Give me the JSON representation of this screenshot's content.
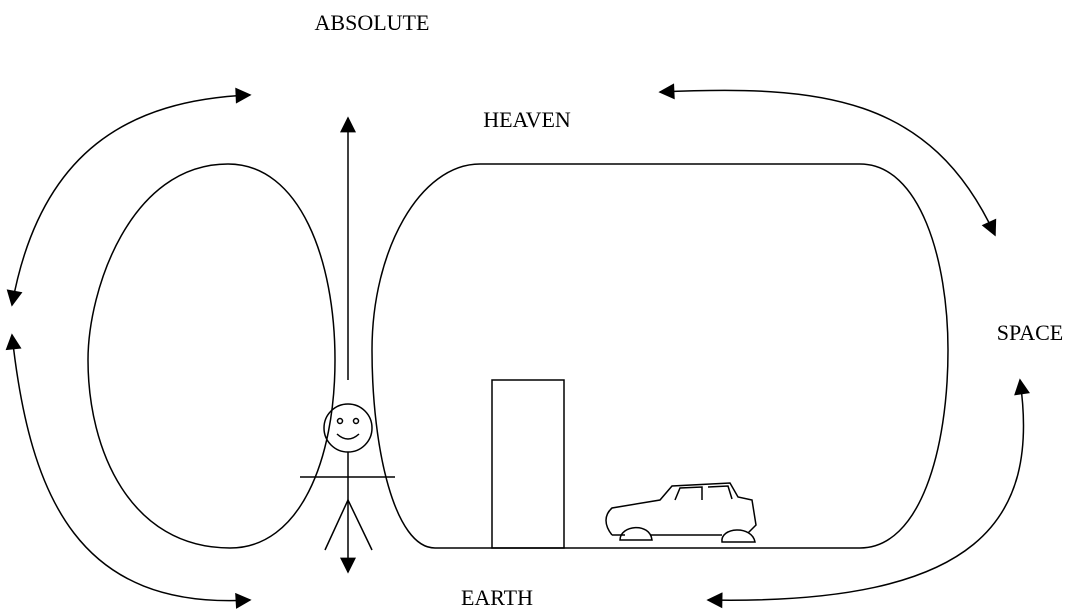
{
  "labels": {
    "top": "ABSOLUTE",
    "upper": "HEAVEN",
    "right": "SPACE",
    "bottom": "EARTH"
  }
}
